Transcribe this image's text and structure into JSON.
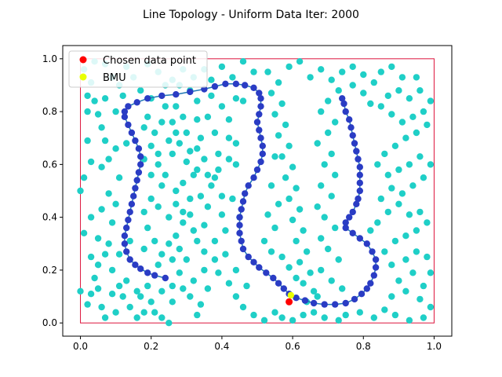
{
  "chart_data": {
    "type": "scatter",
    "title": "Line Topology - Uniform Data Iter: 2000",
    "xlabel": "",
    "ylabel": "",
    "xlim": [
      -0.05,
      1.05
    ],
    "ylim": [
      -0.05,
      1.05
    ],
    "xticks": [
      "0.0",
      "0.2",
      "0.4",
      "0.6",
      "0.8",
      "1.0"
    ],
    "yticks": [
      "0.0",
      "0.2",
      "0.4",
      "0.6",
      "0.8",
      "1.0"
    ],
    "grid": false,
    "legend": {
      "placement": "top-left",
      "entries": [
        {
          "label": "Chosen data point",
          "color": "#ff0000"
        },
        {
          "label": "BMU",
          "color": "#e8ff00"
        }
      ]
    },
    "colors": {
      "data_points": "#1fcfc7",
      "neurons": "#2a3cc4",
      "neuron_line": "#1f77b4",
      "boundary": "#dc143c"
    },
    "boundary_rect": {
      "x": [
        0,
        1
      ],
      "y": [
        0,
        1
      ]
    },
    "chosen_point": {
      "x": 0.59,
      "y": 0.08
    },
    "bmu": {
      "x": 0.595,
      "y": 0.105
    },
    "neurons": [
      [
        0.74,
        0.85
      ],
      [
        0.745,
        0.83
      ],
      [
        0.75,
        0.8
      ],
      [
        0.76,
        0.77
      ],
      [
        0.765,
        0.74
      ],
      [
        0.77,
        0.71
      ],
      [
        0.775,
        0.68
      ],
      [
        0.78,
        0.65
      ],
      [
        0.785,
        0.62
      ],
      [
        0.79,
        0.59
      ],
      [
        0.79,
        0.56
      ],
      [
        0.79,
        0.53
      ],
      [
        0.79,
        0.5
      ],
      [
        0.785,
        0.47
      ],
      [
        0.78,
        0.45
      ],
      [
        0.77,
        0.42
      ],
      [
        0.76,
        0.4
      ],
      [
        0.75,
        0.38
      ],
      [
        0.75,
        0.36
      ],
      [
        0.77,
        0.34
      ],
      [
        0.79,
        0.32
      ],
      [
        0.81,
        0.3
      ],
      [
        0.825,
        0.27
      ],
      [
        0.835,
        0.24
      ],
      [
        0.835,
        0.21
      ],
      [
        0.83,
        0.18
      ],
      [
        0.82,
        0.15
      ],
      [
        0.81,
        0.13
      ],
      [
        0.795,
        0.11
      ],
      [
        0.775,
        0.09
      ],
      [
        0.75,
        0.075
      ],
      [
        0.72,
        0.07
      ],
      [
        0.69,
        0.07
      ],
      [
        0.66,
        0.075
      ],
      [
        0.635,
        0.085
      ],
      [
        0.61,
        0.095
      ],
      [
        0.59,
        0.11
      ],
      [
        0.575,
        0.13
      ],
      [
        0.56,
        0.15
      ],
      [
        0.545,
        0.17
      ],
      [
        0.525,
        0.19
      ],
      [
        0.505,
        0.21
      ],
      [
        0.49,
        0.23
      ],
      [
        0.475,
        0.25
      ],
      [
        0.46,
        0.28
      ],
      [
        0.455,
        0.31
      ],
      [
        0.45,
        0.34
      ],
      [
        0.45,
        0.37
      ],
      [
        0.45,
        0.4
      ],
      [
        0.455,
        0.43
      ],
      [
        0.46,
        0.46
      ],
      [
        0.465,
        0.49
      ],
      [
        0.475,
        0.52
      ],
      [
        0.49,
        0.55
      ],
      [
        0.5,
        0.58
      ],
      [
        0.51,
        0.61
      ],
      [
        0.515,
        0.64
      ],
      [
        0.515,
        0.67
      ],
      [
        0.51,
        0.7
      ],
      [
        0.505,
        0.73
      ],
      [
        0.5,
        0.76
      ],
      [
        0.505,
        0.79
      ],
      [
        0.51,
        0.82
      ],
      [
        0.51,
        0.85
      ],
      [
        0.505,
        0.87
      ],
      [
        0.49,
        0.89
      ],
      [
        0.465,
        0.9
      ],
      [
        0.44,
        0.905
      ],
      [
        0.41,
        0.905
      ],
      [
        0.38,
        0.895
      ],
      [
        0.35,
        0.885
      ],
      [
        0.31,
        0.875
      ],
      [
        0.27,
        0.865
      ],
      [
        0.23,
        0.86
      ],
      [
        0.19,
        0.85
      ],
      [
        0.16,
        0.835
      ],
      [
        0.135,
        0.82
      ],
      [
        0.125,
        0.8
      ],
      [
        0.125,
        0.78
      ],
      [
        0.135,
        0.75
      ],
      [
        0.145,
        0.72
      ],
      [
        0.155,
        0.69
      ],
      [
        0.165,
        0.66
      ],
      [
        0.17,
        0.63
      ],
      [
        0.17,
        0.6
      ],
      [
        0.165,
        0.57
      ],
      [
        0.16,
        0.54
      ],
      [
        0.155,
        0.51
      ],
      [
        0.15,
        0.48
      ],
      [
        0.145,
        0.45
      ],
      [
        0.14,
        0.42
      ],
      [
        0.135,
        0.39
      ],
      [
        0.13,
        0.36
      ],
      [
        0.125,
        0.33
      ],
      [
        0.125,
        0.3
      ],
      [
        0.13,
        0.27
      ],
      [
        0.14,
        0.24
      ],
      [
        0.155,
        0.22
      ],
      [
        0.17,
        0.205
      ],
      [
        0.19,
        0.19
      ],
      [
        0.21,
        0.18
      ],
      [
        0.24,
        0.17
      ]
    ],
    "data_points": [
      [
        0.0,
        0.5
      ],
      [
        0.01,
        0.55
      ],
      [
        0.02,
        0.69
      ],
      [
        0.02,
        0.86
      ],
      [
        0.03,
        0.91
      ],
      [
        0.04,
        0.84
      ],
      [
        0.07,
        0.85
      ],
      [
        0.09,
        0.93
      ],
      [
        0.05,
        0.79
      ],
      [
        0.02,
        0.8
      ],
      [
        0.06,
        0.74
      ],
      [
        0.1,
        0.8
      ],
      [
        0.12,
        0.86
      ],
      [
        0.17,
        0.88
      ],
      [
        0.2,
        0.85
      ],
      [
        0.24,
        0.9
      ],
      [
        0.28,
        0.9
      ],
      [
        0.31,
        0.88
      ],
      [
        0.33,
        0.84
      ],
      [
        0.37,
        0.86
      ],
      [
        0.36,
        0.78
      ],
      [
        0.33,
        0.77
      ],
      [
        0.29,
        0.78
      ],
      [
        0.26,
        0.76
      ],
      [
        0.23,
        0.76
      ],
      [
        0.21,
        0.72
      ],
      [
        0.19,
        0.78
      ],
      [
        0.18,
        0.74
      ],
      [
        0.2,
        0.67
      ],
      [
        0.22,
        0.6
      ],
      [
        0.24,
        0.56
      ],
      [
        0.26,
        0.64
      ],
      [
        0.28,
        0.68
      ],
      [
        0.31,
        0.65
      ],
      [
        0.34,
        0.7
      ],
      [
        0.38,
        0.72
      ],
      [
        0.42,
        0.77
      ],
      [
        0.4,
        0.82
      ],
      [
        0.44,
        0.85
      ],
      [
        0.46,
        0.84
      ],
      [
        0.44,
        0.68
      ],
      [
        0.42,
        0.62
      ],
      [
        0.39,
        0.58
      ],
      [
        0.37,
        0.52
      ],
      [
        0.34,
        0.48
      ],
      [
        0.31,
        0.47
      ],
      [
        0.29,
        0.53
      ],
      [
        0.32,
        0.56
      ],
      [
        0.36,
        0.44
      ],
      [
        0.4,
        0.41
      ],
      [
        0.43,
        0.47
      ],
      [
        0.45,
        0.4
      ],
      [
        0.41,
        0.35
      ],
      [
        0.38,
        0.31
      ],
      [
        0.35,
        0.27
      ],
      [
        0.32,
        0.35
      ],
      [
        0.29,
        0.38
      ],
      [
        0.27,
        0.33
      ],
      [
        0.25,
        0.3
      ],
      [
        0.23,
        0.26
      ],
      [
        0.21,
        0.31
      ],
      [
        0.19,
        0.36
      ],
      [
        0.18,
        0.42
      ],
      [
        0.2,
        0.47
      ],
      [
        0.22,
        0.44
      ],
      [
        0.25,
        0.4
      ],
      [
        0.27,
        0.45
      ],
      [
        0.29,
        0.42
      ],
      [
        0.3,
        0.24
      ],
      [
        0.28,
        0.19
      ],
      [
        0.26,
        0.14
      ],
      [
        0.23,
        0.12
      ],
      [
        0.2,
        0.08
      ],
      [
        0.18,
        0.04
      ],
      [
        0.16,
        0.02
      ],
      [
        0.14,
        0.06
      ],
      [
        0.12,
        0.1
      ],
      [
        0.1,
        0.04
      ],
      [
        0.07,
        0.02
      ],
      [
        0.06,
        0.06
      ],
      [
        0.03,
        0.11
      ],
      [
        0.04,
        0.17
      ],
      [
        0.05,
        0.22
      ],
      [
        0.07,
        0.26
      ],
      [
        0.03,
        0.25
      ],
      [
        0.08,
        0.3
      ],
      [
        0.05,
        0.32
      ],
      [
        0.01,
        0.34
      ],
      [
        0.03,
        0.4
      ],
      [
        0.06,
        0.43
      ],
      [
        0.09,
        0.38
      ],
      [
        0.1,
        0.45
      ],
      [
        0.08,
        0.49
      ],
      [
        0.11,
        0.55
      ],
      [
        0.06,
        0.59
      ],
      [
        0.03,
        0.61
      ],
      [
        0.08,
        0.62
      ],
      [
        0.1,
        0.66
      ],
      [
        0.13,
        0.68
      ],
      [
        0.07,
        0.69
      ],
      [
        0.11,
        0.14
      ],
      [
        0.09,
        0.2
      ],
      [
        0.13,
        0.16
      ],
      [
        0.17,
        0.1
      ],
      [
        0.21,
        0.04
      ],
      [
        0.25,
        0.0
      ],
      [
        0.33,
        0.03
      ],
      [
        0.34,
        0.07
      ],
      [
        0.31,
        0.1
      ],
      [
        0.36,
        0.13
      ],
      [
        0.39,
        0.19
      ],
      [
        0.42,
        0.15
      ],
      [
        0.44,
        0.1
      ],
      [
        0.46,
        0.06
      ],
      [
        0.49,
        0.03
      ],
      [
        0.52,
        0.01
      ],
      [
        0.55,
        0.04
      ],
      [
        0.57,
        0.02
      ],
      [
        0.6,
        0.01
      ],
      [
        0.63,
        0.03
      ],
      [
        0.66,
        0.04
      ],
      [
        0.69,
        0.02
      ],
      [
        0.73,
        0.01
      ],
      [
        0.75,
        0.03
      ],
      [
        0.79,
        0.04
      ],
      [
        0.83,
        0.02
      ],
      [
        0.86,
        0.05
      ],
      [
        0.89,
        0.03
      ],
      [
        0.93,
        0.01
      ],
      [
        0.97,
        0.02
      ],
      [
        0.99,
        0.06
      ],
      [
        0.96,
        0.09
      ],
      [
        0.92,
        0.12
      ],
      [
        0.88,
        0.1
      ],
      [
        0.9,
        0.16
      ],
      [
        0.94,
        0.19
      ],
      [
        0.97,
        0.14
      ],
      [
        0.99,
        0.19
      ],
      [
        0.98,
        0.25
      ],
      [
        0.95,
        0.27
      ],
      [
        0.92,
        0.24
      ],
      [
        0.88,
        0.22
      ],
      [
        0.86,
        0.27
      ],
      [
        0.89,
        0.31
      ],
      [
        0.92,
        0.33
      ],
      [
        0.95,
        0.35
      ],
      [
        0.98,
        0.38
      ],
      [
        0.96,
        0.42
      ],
      [
        0.93,
        0.41
      ],
      [
        0.9,
        0.45
      ],
      [
        0.87,
        0.42
      ],
      [
        0.84,
        0.38
      ],
      [
        0.82,
        0.35
      ],
      [
        0.85,
        0.47
      ],
      [
        0.88,
        0.51
      ],
      [
        0.91,
        0.49
      ],
      [
        0.94,
        0.52
      ],
      [
        0.97,
        0.55
      ],
      [
        0.99,
        0.6
      ],
      [
        0.96,
        0.63
      ],
      [
        0.93,
        0.6
      ],
      [
        0.9,
        0.58
      ],
      [
        0.87,
        0.56
      ],
      [
        0.84,
        0.6
      ],
      [
        0.86,
        0.64
      ],
      [
        0.89,
        0.67
      ],
      [
        0.92,
        0.7
      ],
      [
        0.95,
        0.72
      ],
      [
        0.98,
        0.75
      ],
      [
        0.97,
        0.8
      ],
      [
        0.94,
        0.78
      ],
      [
        0.91,
        0.76
      ],
      [
        0.88,
        0.79
      ],
      [
        0.85,
        0.82
      ],
      [
        0.87,
        0.86
      ],
      [
        0.9,
        0.88
      ],
      [
        0.93,
        0.85
      ],
      [
        0.96,
        0.88
      ],
      [
        0.99,
        0.84
      ],
      [
        0.95,
        0.93
      ],
      [
        0.91,
        0.93
      ],
      [
        0.82,
        0.83
      ],
      [
        0.8,
        0.87
      ],
      [
        0.77,
        0.9
      ],
      [
        0.73,
        0.88
      ],
      [
        0.7,
        0.84
      ],
      [
        0.68,
        0.8
      ],
      [
        0.72,
        0.76
      ],
      [
        0.7,
        0.72
      ],
      [
        0.67,
        0.68
      ],
      [
        0.71,
        0.64
      ],
      [
        0.69,
        0.6
      ],
      [
        0.72,
        0.56
      ],
      [
        0.68,
        0.52
      ],
      [
        0.71,
        0.48
      ],
      [
        0.67,
        0.44
      ],
      [
        0.69,
        0.4
      ],
      [
        0.72,
        0.36
      ],
      [
        0.68,
        0.32
      ],
      [
        0.7,
        0.28
      ],
      [
        0.73,
        0.24
      ],
      [
        0.68,
        0.2
      ],
      [
        0.71,
        0.16
      ],
      [
        0.74,
        0.13
      ],
      [
        0.66,
        0.12
      ],
      [
        0.63,
        0.15
      ],
      [
        0.65,
        0.19
      ],
      [
        0.62,
        0.23
      ],
      [
        0.64,
        0.27
      ],
      [
        0.61,
        0.31
      ],
      [
        0.63,
        0.35
      ],
      [
        0.6,
        0.39
      ],
      [
        0.62,
        0.43
      ],
      [
        0.59,
        0.47
      ],
      [
        0.61,
        0.51
      ],
      [
        0.58,
        0.55
      ],
      [
        0.6,
        0.59
      ],
      [
        0.57,
        0.63
      ],
      [
        0.59,
        0.67
      ],
      [
        0.56,
        0.71
      ],
      [
        0.58,
        0.75
      ],
      [
        0.55,
        0.79
      ],
      [
        0.57,
        0.83
      ],
      [
        0.54,
        0.87
      ],
      [
        0.56,
        0.91
      ],
      [
        0.53,
        0.95
      ],
      [
        0.59,
        0.97
      ],
      [
        0.62,
        0.99
      ],
      [
        0.65,
        0.93
      ],
      [
        0.68,
        0.96
      ],
      [
        0.71,
        0.92
      ],
      [
        0.74,
        0.95
      ],
      [
        0.77,
        0.97
      ],
      [
        0.8,
        0.94
      ],
      [
        0.83,
        0.91
      ],
      [
        0.85,
        0.95
      ],
      [
        0.88,
        0.97
      ],
      [
        0.55,
        0.63
      ],
      [
        0.54,
        0.52
      ],
      [
        0.56,
        0.45
      ],
      [
        0.53,
        0.41
      ],
      [
        0.55,
        0.36
      ],
      [
        0.52,
        0.31
      ],
      [
        0.54,
        0.27
      ],
      [
        0.57,
        0.25
      ],
      [
        0.59,
        0.21
      ],
      [
        0.61,
        0.17
      ],
      [
        0.64,
        0.08
      ],
      [
        0.67,
        0.1
      ],
      [
        0.47,
        0.14
      ],
      [
        0.44,
        0.2
      ],
      [
        0.41,
        0.26
      ],
      [
        0.38,
        0.24
      ],
      [
        0.35,
        0.2
      ],
      [
        0.32,
        0.16
      ],
      [
        0.29,
        0.13
      ],
      [
        0.26,
        0.08
      ],
      [
        0.23,
        0.02
      ],
      [
        0.19,
        0.14
      ],
      [
        0.16,
        0.12
      ],
      [
        0.4,
        0.48
      ],
      [
        0.38,
        0.55
      ],
      [
        0.35,
        0.62
      ],
      [
        0.33,
        0.66
      ],
      [
        0.3,
        0.72
      ],
      [
        0.27,
        0.82
      ],
      [
        0.24,
        0.82
      ],
      [
        0.22,
        0.95
      ],
      [
        0.15,
        0.93
      ],
      [
        0.11,
        0.9
      ],
      [
        0.49,
        0.95
      ],
      [
        0.46,
        0.99
      ],
      [
        0.43,
        0.93
      ],
      [
        0.4,
        0.97
      ],
      [
        0.37,
        0.92
      ],
      [
        0.35,
        0.96
      ],
      [
        0.32,
        0.93
      ],
      [
        0.29,
        0.96
      ],
      [
        0.26,
        0.92
      ],
      [
        0.19,
        0.98
      ],
      [
        0.01,
        0.96
      ],
      [
        0.04,
        0.99
      ],
      [
        0.07,
        0.98
      ],
      [
        0.13,
        0.97
      ],
      [
        0.0,
        0.12
      ],
      [
        0.02,
        0.07
      ],
      [
        0.05,
        0.13
      ],
      [
        0.09,
        0.11
      ],
      [
        0.11,
        0.26
      ],
      [
        0.14,
        0.31
      ],
      [
        0.18,
        0.28
      ],
      [
        0.22,
        0.22
      ],
      [
        0.26,
        0.24
      ],
      [
        0.28,
        0.28
      ],
      [
        0.33,
        0.31
      ],
      [
        0.35,
        0.37
      ],
      [
        0.31,
        0.41
      ],
      [
        0.27,
        0.5
      ],
      [
        0.23,
        0.52
      ],
      [
        0.2,
        0.56
      ],
      [
        0.18,
        0.62
      ],
      [
        0.22,
        0.64
      ],
      [
        0.25,
        0.69
      ],
      [
        0.27,
        0.72
      ],
      [
        0.3,
        0.61
      ],
      [
        0.33,
        0.58
      ],
      [
        0.36,
        0.56
      ],
      [
        0.39,
        0.64
      ],
      [
        0.42,
        0.7
      ],
      [
        0.44,
        0.6
      ]
    ]
  }
}
